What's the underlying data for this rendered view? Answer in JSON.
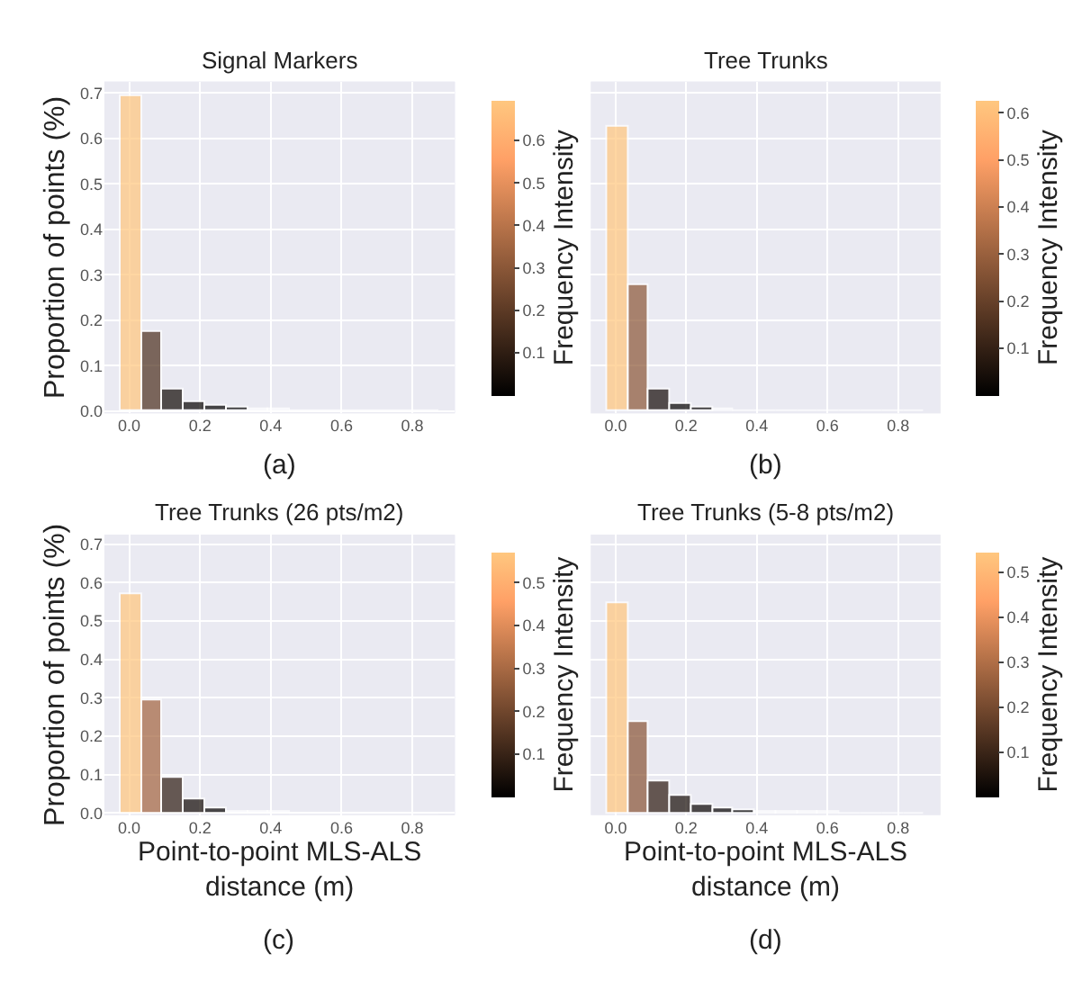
{
  "chart_data": [
    {
      "type": "histogram",
      "title": "Signal Markers",
      "ylabel": "Proportion of points (%)",
      "clabel": "Frequency Intensity",
      "annotations": [
        "(a)"
      ],
      "bins": [
        -0.025,
        0.035,
        0.095,
        0.155,
        0.215,
        0.275,
        0.335,
        0.395,
        0.455,
        0.515,
        0.575,
        0.635,
        0.695,
        0.755,
        0.815,
        0.875
      ],
      "values": [
        0.695,
        0.174,
        0.049,
        0.021,
        0.011,
        0.006,
        0.003,
        0.002,
        0.001,
        0.001,
        0,
        0,
        0,
        0,
        0.001
      ],
      "xlim": [
        -0.07,
        0.92
      ],
      "xticks": [
        {
          "value": 0,
          "label": "0.0"
        },
        {
          "value": 0.2,
          "label": "0.2"
        },
        {
          "value": 0.4,
          "label": "0.4"
        },
        {
          "value": 0.6,
          "label": "0.6"
        },
        {
          "value": 0.8,
          "label": "0.8"
        }
      ],
      "ylim": [
        -0.005,
        0.725
      ],
      "yticks": [
        {
          "value": 0,
          "label": "0.0"
        },
        0.1,
        0.2,
        0.3,
        0.4,
        0.5,
        0.6,
        0.7
      ],
      "clim": [
        0,
        0.695
      ],
      "cticks": [
        0.1,
        0.2,
        0.3,
        0.4,
        0.5,
        0.6
      ],
      "grid": true
    },
    {
      "type": "histogram",
      "title": "Tree Trunks",
      "clabel": "Frequency Intensity",
      "annotations": [
        "(b)"
      ],
      "bins": [
        -0.025,
        0.035,
        0.095,
        0.155,
        0.215,
        0.275,
        0.335,
        0.395,
        0.455,
        0.515,
        0.575,
        0.635,
        0.695,
        0.755,
        0.815,
        0.875
      ],
      "values": [
        0.627,
        0.279,
        0.048,
        0.016,
        0.007,
        0.003,
        0.001,
        0.001,
        0,
        0,
        0,
        0,
        0,
        0,
        0
      ],
      "xlim": [
        -0.07,
        0.92
      ],
      "xticks": [
        {
          "value": 0,
          "label": "0.0"
        },
        {
          "value": 0.2,
          "label": "0.2"
        },
        {
          "value": 0.4,
          "label": "0.4"
        },
        {
          "value": 0.6,
          "label": "0.6"
        },
        {
          "value": 0.8,
          "label": "0.8"
        }
      ],
      "ylim": [
        -0.005,
        0.725
      ],
      "yticks": [
        0.1,
        0.2,
        0.3,
        0.4,
        0.5,
        0.6,
        0.7
      ],
      "clim": [
        0,
        0.627
      ],
      "cticks": [
        0.1,
        0.2,
        0.3,
        0.4,
        0.5,
        0.6
      ],
      "grid": true,
      "tick_labels": "x"
    },
    {
      "type": "histogram",
      "title": "Tree Trunks (26 pts/m2)",
      "xlabel": "Point-to-point MLS-ALS\ndistance (m)",
      "ylabel": "Proportion of points (%)",
      "clabel": "Frequency Intensity",
      "annotations": [
        "(c)"
      ],
      "bins": [
        -0.025,
        0.035,
        0.095,
        0.155,
        0.215,
        0.275,
        0.335,
        0.395,
        0.455,
        0.515,
        0.575,
        0.635,
        0.695,
        0.755,
        0.815,
        0.875
      ],
      "values": [
        0.571,
        0.295,
        0.092,
        0.037,
        0.014,
        0.005,
        0.002,
        0.001,
        0,
        0,
        0,
        0,
        0,
        0,
        0
      ],
      "xlim": [
        -0.07,
        0.92
      ],
      "xticks": [
        {
          "value": 0,
          "label": "0.0"
        },
        {
          "value": 0.2,
          "label": "0.2"
        },
        {
          "value": 0.4,
          "label": "0.4"
        },
        {
          "value": 0.6,
          "label": "0.6"
        },
        {
          "value": 0.8,
          "label": "0.8"
        }
      ],
      "ylim": [
        -0.005,
        0.725
      ],
      "yticks": [
        {
          "value": 0,
          "label": "0.0"
        },
        0.1,
        0.2,
        0.3,
        0.4,
        0.5,
        0.6,
        0.7
      ],
      "clim": [
        0,
        0.571
      ],
      "cticks": [
        0.1,
        0.2,
        0.3,
        0.4,
        0.5
      ],
      "grid": true
    },
    {
      "type": "histogram",
      "title": "Tree Trunks (5-8 pts/m2)",
      "xlabel": "Point-to-point MLS-ALS\ndistance (m)",
      "clabel": "Frequency Intensity",
      "annotations": [
        "(d)"
      ],
      "bins": [
        -0.025,
        0.035,
        0.095,
        0.155,
        0.215,
        0.275,
        0.335,
        0.395,
        0.455,
        0.515,
        0.575,
        0.635,
        0.695,
        0.755,
        0.815,
        0.875
      ],
      "values": [
        0.545,
        0.238,
        0.083,
        0.046,
        0.024,
        0.014,
        0.007,
        0.003,
        0.002,
        0.001,
        0.001,
        0,
        0,
        0,
        0
      ],
      "xlim": [
        -0.07,
        0.92
      ],
      "xticks": [
        {
          "value": 0,
          "label": "0.0"
        },
        {
          "value": 0.2,
          "label": "0.2"
        },
        {
          "value": 0.4,
          "label": "0.4"
        },
        {
          "value": 0.6,
          "label": "0.6"
        },
        {
          "value": 0.8,
          "label": "0.8"
        }
      ],
      "ylim": [
        -0.005,
        0.725
      ],
      "yticks": [
        0.1,
        0.2,
        0.3,
        0.4,
        0.5,
        0.6,
        0.7
      ],
      "clim": [
        0,
        0.545
      ],
      "cticks": [
        0.1,
        0.2,
        0.3,
        0.4,
        0.5
      ],
      "grid": true,
      "tick_labels": "x"
    }
  ]
}
